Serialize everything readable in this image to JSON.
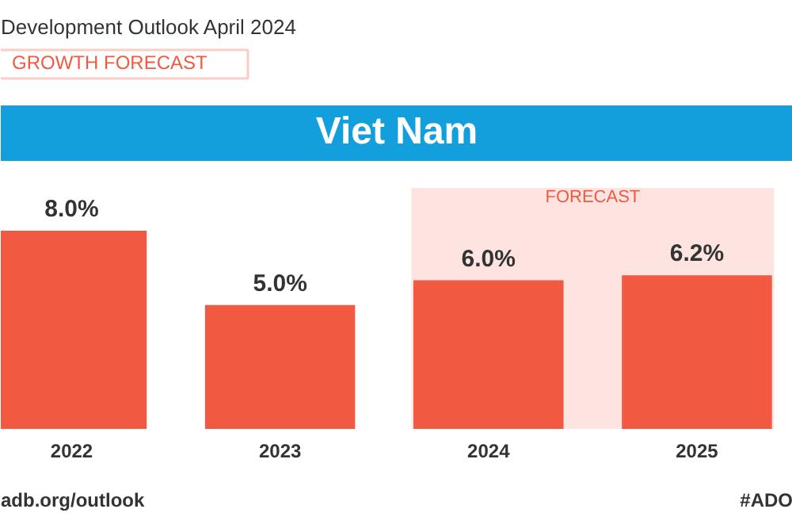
{
  "chart_data": {
    "type": "bar",
    "title": "Viet Nam",
    "subtitle": "GROWTH FORECAST",
    "categories": [
      "2022",
      "2023",
      "2024",
      "2025"
    ],
    "values": [
      8.0,
      5.0,
      6.0,
      6.2
    ],
    "color": "#f15a40",
    "value_labels": [
      "8.0%",
      "5.0%",
      "6.0%",
      "6.2%"
    ],
    "bands": [
      {
        "axis": "x",
        "from": "2024",
        "to": "2025",
        "label": "FORECAST",
        "color": "#fde4e1"
      }
    ],
    "annotations": [
      "Development Outlook April 2024",
      "adb.org/outlook",
      "#ADO"
    ],
    "grid": false
  }
}
